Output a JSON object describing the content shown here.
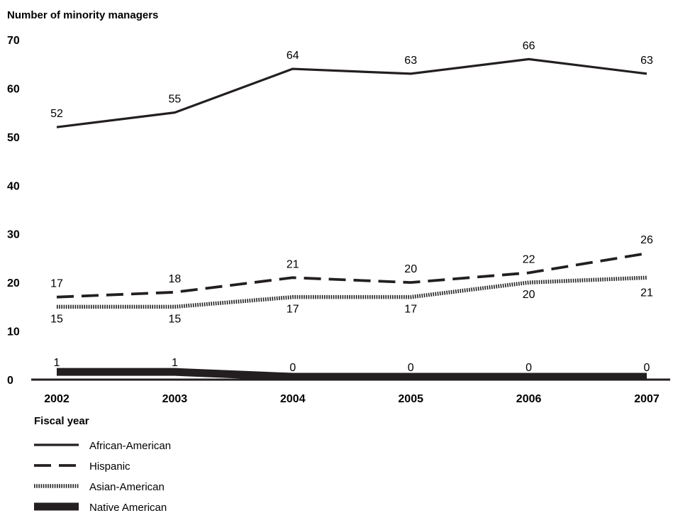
{
  "chart_data": {
    "type": "line",
    "title": "",
    "ylabel": "Number of minority managers",
    "xlabel": "Fiscal year",
    "ylim": [
      0,
      70
    ],
    "yticks": [
      0,
      10,
      20,
      30,
      40,
      50,
      60,
      70
    ],
    "x": [
      "2002",
      "2003",
      "2004",
      "2005",
      "2006",
      "2007"
    ],
    "grid": false,
    "legend_position": "bottom-left",
    "series": [
      {
        "name": "African-American",
        "values": [
          52,
          55,
          64,
          63,
          66,
          63
        ],
        "style": "solid",
        "color": "#231f20"
      },
      {
        "name": "Hispanic",
        "values": [
          17,
          18,
          21,
          20,
          22,
          26
        ],
        "style": "dashed",
        "color": "#231f20"
      },
      {
        "name": "Asian-American",
        "values": [
          15,
          15,
          17,
          17,
          20,
          21
        ],
        "style": "dotted",
        "color": "#231f20"
      },
      {
        "name": "Native American",
        "values": [
          1,
          1,
          0,
          0,
          0,
          0
        ],
        "style": "thick",
        "color": "#231f20"
      }
    ]
  }
}
